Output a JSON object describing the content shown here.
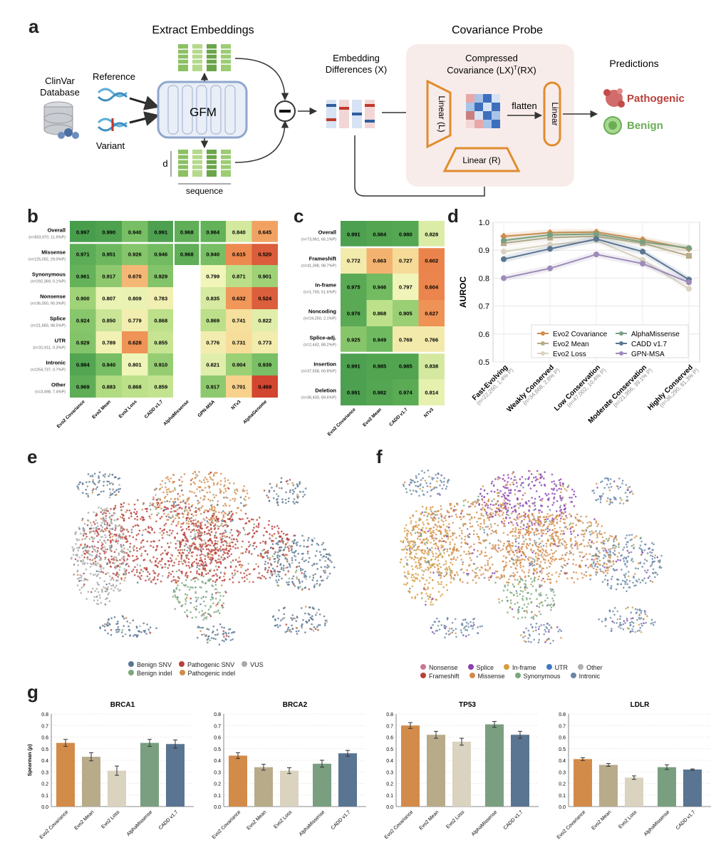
{
  "panel_labels": {
    "a": "a",
    "b": "b",
    "c": "c",
    "d": "d",
    "e": "e",
    "f": "f",
    "g": "g"
  },
  "panel_a": {
    "extract_title": "Extract Embeddings",
    "probe_title": "Covariance Probe",
    "clinvar": "ClinVar",
    "database": "Database",
    "reference": "Reference",
    "variant": "Variant",
    "gfm": "GFM",
    "d_label": "d",
    "sequence_label": "sequence",
    "embed_diff_1": "Embedding",
    "embed_diff_2": "Differences (X)",
    "compressed_1": "Compressed",
    "compressed_2": "Covariance (LX)",
    "compressed_sup": "T",
    "compressed_3": "(RX)",
    "linear_l": "Linear (L)",
    "linear_r": "Linear (R)",
    "linear": "Linear",
    "flatten": "flatten",
    "predictions": "Predictions",
    "pathogenic": "Pathogenic",
    "benign": "Benign"
  },
  "colors": {
    "evo2_cov": "#d38b4a",
    "evo2_mean": "#b8ab8a",
    "evo2_loss": "#d9d3bf",
    "alphamissense": "#7a9f80",
    "cadd": "#5a7592",
    "gpn": "#9d8bb8",
    "pathogenic": "#b8403a",
    "benign": "#6aad55"
  },
  "heatmap_b": {
    "columns": [
      "Evo2 Covariance",
      "Evo2 Mean",
      "Evo2 Loss",
      "CADD v1.7",
      "AlphaMissense",
      "GPN-MSA",
      "NTv3",
      "AlphaGenome"
    ],
    "rows": [
      {
        "name": "Overall",
        "sub": "(n=833,970, 11.6%P)",
        "values": [
          "0.997",
          "0.990",
          "0.940",
          "0.991",
          "0.968",
          "0.964",
          "0.840",
          "0.645"
        ]
      },
      {
        "name": "Missense",
        "sub": "(n=125,092, 29.0%P)",
        "values": [
          "0.971",
          "0.951",
          "0.926",
          "0.946",
          "0.968",
          "0.940",
          "0.615",
          "0.520"
        ]
      },
      {
        "name": "Synonymous",
        "sub": "(n=292,369, 0.1%P)",
        "values": [
          "0.961",
          "0.917",
          "0.670",
          "0.929",
          "",
          "0.799",
          "0.871",
          "0.901"
        ]
      },
      {
        "name": "Nonsense",
        "sub": "(n=36,050, 90.3%P)",
        "values": [
          "0.900",
          "0.807",
          "0.809",
          "0.783",
          "",
          "0.835",
          "0.632",
          "0.524"
        ]
      },
      {
        "name": "Splice",
        "sub": "(n=21,683, 98.5%P)",
        "values": [
          "0.924",
          "0.850",
          "0.779",
          "0.868",
          "",
          "0.869",
          "0.741",
          "0.822"
        ]
      },
      {
        "name": "UTR",
        "sub": "(n=31,911, 0.3%P)",
        "values": [
          "0.929",
          "0.789",
          "0.628",
          "0.855",
          "",
          "0.776",
          "0.731",
          "0.773"
        ]
      },
      {
        "name": "Intronic",
        "sub": "(n=254,737, 0.7%P)",
        "values": [
          "0.984",
          "0.940",
          "0.801",
          "0.910",
          "",
          "0.821",
          "0.904",
          "0.939"
        ]
      },
      {
        "name": "Other",
        "sub": "(n=3,498, 7.4%P)",
        "values": [
          "0.969",
          "0.883",
          "0.868",
          "0.859",
          "",
          "0.917",
          "0.701",
          "0.469"
        ]
      }
    ]
  },
  "heatmap_c": {
    "columns": [
      "Evo2 Covariance",
      "Evo2 Mean",
      "CADD v1.7",
      "NTv3"
    ],
    "rows": [
      {
        "name": "Overall",
        "sub": "(n=73,961, 65.1%P)",
        "values": [
          "0.991",
          "0.984",
          "0.980",
          "0.828"
        ]
      },
      {
        "name": "Frameshift",
        "sub": "(n=41,398, 98.7%P)",
        "values": [
          "0.772",
          "0.663",
          "0.727",
          "0.602"
        ]
      },
      {
        "name": "In-frame",
        "sub": "(n=1,769, 51.6%P)",
        "values": [
          "0.975",
          "0.946",
          "0.797",
          "0.604"
        ]
      },
      {
        "name": "Noncoding",
        "sub": "(n=24,250, 2.1%P)",
        "values": [
          "0.976",
          "0.868",
          "0.905",
          "0.627"
        ]
      },
      {
        "name": "Splice-adj.",
        "sub": "(n=2,442, 88.2%P)",
        "values": [
          "0.925",
          "0.949",
          "0.769",
          "0.766"
        ]
      },
      {
        "name": "Insertion",
        "sub": "(n=37,558, 60.8%P)",
        "values": [
          "0.991",
          "0.985",
          "0.985",
          "0.838"
        ]
      },
      {
        "name": "Deletion",
        "sub": "(n=36,403, 69.6%P)",
        "values": [
          "0.991",
          "0.982",
          "0.974",
          "0.814"
        ]
      }
    ]
  },
  "chart_data": [
    {
      "type": "line",
      "ylabel": "AUROC",
      "ylim": [
        0.5,
        1.0
      ],
      "yticks": [
        "1.0",
        "0.9",
        "0.8",
        "0.7",
        "0.6",
        "0.5"
      ],
      "categories": [
        "Fast-Evolving",
        "Weakly Conserved",
        "Low Conservation",
        "Moderate Conservation",
        "Highly Conserved"
      ],
      "category_subs": [
        "(n=22,260, 1.4% P)",
        "(n=34,668, 2.8% P)",
        "(n=47,002, 10.4% P)",
        "(n=21,956, 39.1% P)",
        "(n=36,290, 81.3% P)"
      ],
      "legend_position": "bottom-center",
      "grid": true,
      "series": [
        {
          "name": "Evo2 Covariance",
          "marker": "diamond",
          "values": [
            0.95,
            0.963,
            0.965,
            0.938,
            0.905
          ]
        },
        {
          "name": "Evo2 Mean",
          "marker": "square",
          "values": [
            0.925,
            0.945,
            0.95,
            0.925,
            0.88
          ]
        },
        {
          "name": "Evo2 Loss",
          "marker": "circle",
          "values": [
            0.895,
            0.92,
            0.935,
            0.865,
            0.762
          ]
        },
        {
          "name": "AlphaMissense",
          "marker": "circle",
          "values": [
            0.935,
            0.955,
            0.958,
            0.93,
            0.908
          ]
        },
        {
          "name": "CADD v1.7",
          "marker": "circle",
          "values": [
            0.868,
            0.905,
            0.94,
            0.895,
            0.795
          ]
        },
        {
          "name": "GPN-MSA",
          "marker": "circle",
          "values": [
            0.8,
            0.835,
            0.885,
            0.852,
            0.785
          ]
        }
      ]
    },
    {
      "type": "bar",
      "title": "BRCA1",
      "ylabel": "Spearman (ρ)",
      "ylim": [
        0,
        0.8
      ],
      "yticks": [
        "0.8",
        "0.7",
        "0.6",
        "0.5",
        "0.4",
        "0.3",
        "0.2",
        "0.1",
        "0.0"
      ],
      "categories": [
        "Evo2 Covariance",
        "Evo2 Mean",
        "Evo2 Loss",
        "AlphaMissense",
        "CADD v1.7"
      ],
      "values": [
        0.55,
        0.43,
        0.31,
        0.55,
        0.54
      ],
      "errors": [
        0.03,
        0.035,
        0.04,
        0.03,
        0.035
      ]
    },
    {
      "type": "bar",
      "title": "BRCA2",
      "ylim": [
        0,
        0.8
      ],
      "yticks": [
        "0.8",
        "0.7",
        "0.6",
        "0.5",
        "0.4",
        "0.3",
        "0.2",
        "0.1",
        "0.0"
      ],
      "categories": [
        "Evo2 Covariance",
        "Evo2 Mean",
        "Evo2 Loss",
        "AlphaMissense",
        "CADD v1.7"
      ],
      "values": [
        0.44,
        0.34,
        0.31,
        0.37,
        0.46
      ],
      "errors": [
        0.025,
        0.025,
        0.025,
        0.03,
        0.025
      ]
    },
    {
      "type": "bar",
      "title": "TP53",
      "ylim": [
        0,
        0.8
      ],
      "yticks": [
        "0.8",
        "0.7",
        "0.6",
        "0.5",
        "0.4",
        "0.3",
        "0.2",
        "0.1",
        "0.0"
      ],
      "categories": [
        "Evo2 Covariance",
        "Evo2 Mean",
        "Evo2 Loss",
        "AlphaMissense",
        "CADD v1.7"
      ],
      "values": [
        0.7,
        0.62,
        0.56,
        0.71,
        0.62
      ],
      "errors": [
        0.025,
        0.03,
        0.03,
        0.025,
        0.03
      ]
    },
    {
      "type": "bar",
      "title": "LDLR",
      "ylim": [
        0,
        0.8
      ],
      "yticks": [
        "0.8",
        "0.7",
        "0.6",
        "0.5",
        "0.4",
        "0.3",
        "0.2",
        "0.1",
        "0.0"
      ],
      "categories": [
        "Evo2 Covariance",
        "Evo2 Mean",
        "Evo2 Loss",
        "AlphaMissense",
        "CADD v1.7"
      ],
      "values": [
        0.41,
        0.36,
        0.25,
        0.34,
        0.32
      ],
      "errors": [
        0.012,
        0.012,
        0.015,
        0.02,
        0.005
      ]
    }
  ],
  "umap_e": {
    "legend": [
      "Benign SNV",
      "Pathogenic SNV",
      "VUS",
      "Benign indel",
      "Pathogenic indel"
    ],
    "legend_colors": [
      "#5a7592",
      "#b8403a",
      "#a8a8a8",
      "#7aa77c",
      "#d38b4a"
    ]
  },
  "umap_f": {
    "legend": [
      "Nonsense",
      "Splice",
      "In-frame",
      "UTR",
      "Other",
      "Frameshift",
      "Missense",
      "Synonymous",
      "Intronic"
    ],
    "legend_colors": [
      "#c9788f",
      "#8a3fb0",
      "#d89b3e",
      "#3f78c6",
      "#b0b0b0",
      "#b8403a",
      "#d38b4a",
      "#7aa77c",
      "#6a87a8"
    ]
  }
}
